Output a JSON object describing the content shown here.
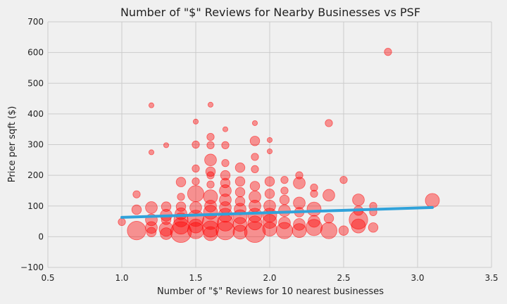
{
  "chart_data": {
    "type": "scatter",
    "title": "Number of \"$\" Reviews for Nearby Businesses vs PSF",
    "xlabel": "Number of \"$\" Reviews for 10 nearest businesses",
    "ylabel": "Price per sqft ($)",
    "xlim": [
      0.5,
      3.5
    ],
    "ylim": [
      -100,
      700
    ],
    "xticks": [
      "0.5",
      "1.0",
      "1.5",
      "2.0",
      "2.5",
      "3.0",
      "3.5"
    ],
    "yticks": [
      "−100",
      "0",
      "100",
      "200",
      "300",
      "400",
      "500",
      "600",
      "700"
    ],
    "grid": true,
    "colors": {
      "points": "#ff0000",
      "trend": "#30a2da",
      "background": "#f0f0f0",
      "grid": "#cbcbcb"
    },
    "points": [
      {
        "x": 1.0,
        "y": 48,
        "s": 2
      },
      {
        "x": 1.1,
        "y": 20,
        "s": 7
      },
      {
        "x": 1.1,
        "y": 88,
        "s": 3
      },
      {
        "x": 1.1,
        "y": 138,
        "s": 2
      },
      {
        "x": 1.2,
        "y": 428,
        "s": 1
      },
      {
        "x": 1.2,
        "y": 275,
        "s": 1
      },
      {
        "x": 1.2,
        "y": 95,
        "s": 4
      },
      {
        "x": 1.2,
        "y": 55,
        "s": 4
      },
      {
        "x": 1.2,
        "y": 30,
        "s": 4
      },
      {
        "x": 1.2,
        "y": 15,
        "s": 3
      },
      {
        "x": 1.3,
        "y": 298,
        "s": 1
      },
      {
        "x": 1.3,
        "y": 98,
        "s": 3
      },
      {
        "x": 1.3,
        "y": 70,
        "s": 4
      },
      {
        "x": 1.3,
        "y": 55,
        "s": 3
      },
      {
        "x": 1.3,
        "y": 25,
        "s": 5
      },
      {
        "x": 1.3,
        "y": 10,
        "s": 4
      },
      {
        "x": 1.4,
        "y": 178,
        "s": 3
      },
      {
        "x": 1.4,
        "y": 130,
        "s": 2
      },
      {
        "x": 1.4,
        "y": 98,
        "s": 3
      },
      {
        "x": 1.4,
        "y": 75,
        "s": 4
      },
      {
        "x": 1.4,
        "y": 55,
        "s": 5
      },
      {
        "x": 1.4,
        "y": 35,
        "s": 6
      },
      {
        "x": 1.4,
        "y": 15,
        "s": 8
      },
      {
        "x": 1.5,
        "y": 375,
        "s": 1
      },
      {
        "x": 1.5,
        "y": 300,
        "s": 2
      },
      {
        "x": 1.5,
        "y": 222,
        "s": 2
      },
      {
        "x": 1.5,
        "y": 180,
        "s": 2
      },
      {
        "x": 1.5,
        "y": 140,
        "s": 6
      },
      {
        "x": 1.5,
        "y": 95,
        "s": 4
      },
      {
        "x": 1.5,
        "y": 60,
        "s": 6
      },
      {
        "x": 1.5,
        "y": 35,
        "s": 5
      },
      {
        "x": 1.5,
        "y": 20,
        "s": 6
      },
      {
        "x": 1.6,
        "y": 430,
        "s": 1
      },
      {
        "x": 1.6,
        "y": 325,
        "s": 2
      },
      {
        "x": 1.6,
        "y": 298,
        "s": 2
      },
      {
        "x": 1.6,
        "y": 250,
        "s": 4
      },
      {
        "x": 1.6,
        "y": 212,
        "s": 3
      },
      {
        "x": 1.6,
        "y": 200,
        "s": 2
      },
      {
        "x": 1.6,
        "y": 170,
        "s": 2
      },
      {
        "x": 1.6,
        "y": 130,
        "s": 5
      },
      {
        "x": 1.6,
        "y": 100,
        "s": 4
      },
      {
        "x": 1.6,
        "y": 80,
        "s": 5
      },
      {
        "x": 1.6,
        "y": 50,
        "s": 6
      },
      {
        "x": 1.6,
        "y": 25,
        "s": 6
      },
      {
        "x": 1.6,
        "y": 10,
        "s": 5
      },
      {
        "x": 1.7,
        "y": 350,
        "s": 1
      },
      {
        "x": 1.7,
        "y": 298,
        "s": 2
      },
      {
        "x": 1.7,
        "y": 240,
        "s": 2
      },
      {
        "x": 1.7,
        "y": 200,
        "s": 3
      },
      {
        "x": 1.7,
        "y": 175,
        "s": 3
      },
      {
        "x": 1.7,
        "y": 150,
        "s": 4
      },
      {
        "x": 1.7,
        "y": 120,
        "s": 4
      },
      {
        "x": 1.7,
        "y": 95,
        "s": 4
      },
      {
        "x": 1.7,
        "y": 70,
        "s": 5
      },
      {
        "x": 1.7,
        "y": 45,
        "s": 6
      },
      {
        "x": 1.7,
        "y": 20,
        "s": 7
      },
      {
        "x": 1.8,
        "y": 225,
        "s": 3
      },
      {
        "x": 1.8,
        "y": 180,
        "s": 3
      },
      {
        "x": 1.8,
        "y": 145,
        "s": 3
      },
      {
        "x": 1.8,
        "y": 115,
        "s": 3
      },
      {
        "x": 1.8,
        "y": 90,
        "s": 4
      },
      {
        "x": 1.8,
        "y": 65,
        "s": 5
      },
      {
        "x": 1.8,
        "y": 40,
        "s": 5
      },
      {
        "x": 1.8,
        "y": 15,
        "s": 5
      },
      {
        "x": 1.9,
        "y": 370,
        "s": 1
      },
      {
        "x": 1.9,
        "y": 312,
        "s": 3
      },
      {
        "x": 1.9,
        "y": 260,
        "s": 2
      },
      {
        "x": 1.9,
        "y": 220,
        "s": 2
      },
      {
        "x": 1.9,
        "y": 165,
        "s": 3
      },
      {
        "x": 1.9,
        "y": 130,
        "s": 4
      },
      {
        "x": 1.9,
        "y": 100,
        "s": 4
      },
      {
        "x": 1.9,
        "y": 70,
        "s": 5
      },
      {
        "x": 1.9,
        "y": 45,
        "s": 5
      },
      {
        "x": 1.9,
        "y": 15,
        "s": 8
      },
      {
        "x": 2.0,
        "y": 315,
        "s": 1
      },
      {
        "x": 2.0,
        "y": 278,
        "s": 1
      },
      {
        "x": 2.0,
        "y": 180,
        "s": 3
      },
      {
        "x": 2.0,
        "y": 140,
        "s": 3
      },
      {
        "x": 2.0,
        "y": 100,
        "s": 4
      },
      {
        "x": 2.0,
        "y": 70,
        "s": 5
      },
      {
        "x": 2.0,
        "y": 50,
        "s": 5
      },
      {
        "x": 2.0,
        "y": 25,
        "s": 5
      },
      {
        "x": 2.1,
        "y": 185,
        "s": 2
      },
      {
        "x": 2.1,
        "y": 150,
        "s": 2
      },
      {
        "x": 2.1,
        "y": 120,
        "s": 3
      },
      {
        "x": 2.1,
        "y": 85,
        "s": 4
      },
      {
        "x": 2.1,
        "y": 45,
        "s": 4
      },
      {
        "x": 2.1,
        "y": 20,
        "s": 6
      },
      {
        "x": 2.2,
        "y": 200,
        "s": 2
      },
      {
        "x": 2.2,
        "y": 175,
        "s": 4
      },
      {
        "x": 2.2,
        "y": 110,
        "s": 4
      },
      {
        "x": 2.2,
        "y": 80,
        "s": 3
      },
      {
        "x": 2.2,
        "y": 40,
        "s": 4
      },
      {
        "x": 2.2,
        "y": 20,
        "s": 5
      },
      {
        "x": 2.3,
        "y": 160,
        "s": 2
      },
      {
        "x": 2.3,
        "y": 140,
        "s": 2
      },
      {
        "x": 2.3,
        "y": 90,
        "s": 5
      },
      {
        "x": 2.3,
        "y": 50,
        "s": 4
      },
      {
        "x": 2.3,
        "y": 30,
        "s": 6
      },
      {
        "x": 2.4,
        "y": 370,
        "s": 2
      },
      {
        "x": 2.4,
        "y": 135,
        "s": 4
      },
      {
        "x": 2.4,
        "y": 60,
        "s": 3
      },
      {
        "x": 2.4,
        "y": 20,
        "s": 6
      },
      {
        "x": 2.5,
        "y": 185,
        "s": 2
      },
      {
        "x": 2.5,
        "y": 20,
        "s": 3
      },
      {
        "x": 2.6,
        "y": 120,
        "s": 4
      },
      {
        "x": 2.6,
        "y": 85,
        "s": 3
      },
      {
        "x": 2.6,
        "y": 55,
        "s": 7
      },
      {
        "x": 2.6,
        "y": 35,
        "s": 5
      },
      {
        "x": 2.7,
        "y": 100,
        "s": 2
      },
      {
        "x": 2.7,
        "y": 80,
        "s": 2
      },
      {
        "x": 2.7,
        "y": 30,
        "s": 3
      },
      {
        "x": 2.8,
        "y": 602,
        "s": 2
      },
      {
        "x": 3.1,
        "y": 118,
        "s": 5
      }
    ],
    "trendline": {
      "x": [
        1.0,
        3.1
      ],
      "y": [
        63,
        95
      ]
    }
  }
}
